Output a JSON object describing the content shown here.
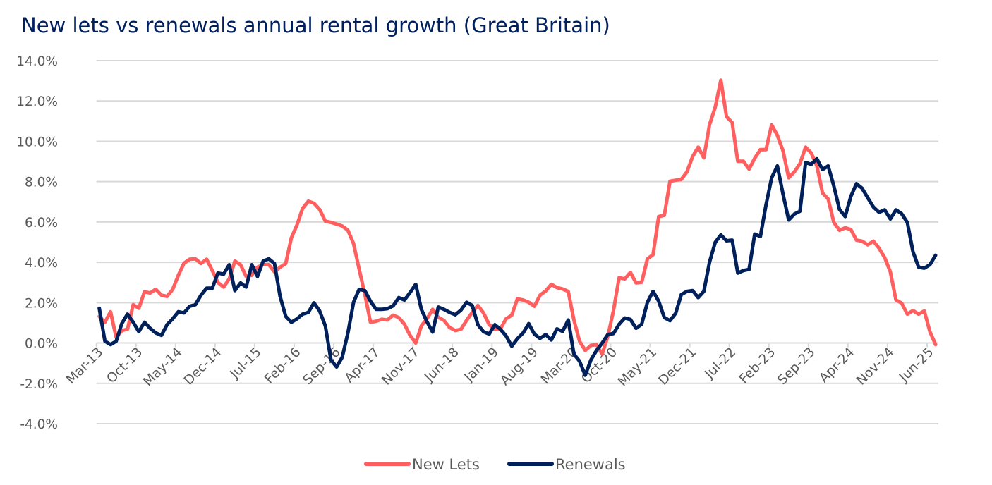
{
  "chart_data": {
    "type": "line",
    "title": "New lets vs renewals annual rental growth (Great Britain)",
    "xlabel": "",
    "ylabel": "",
    "ylim": [
      -4,
      14
    ],
    "y_ticks": [
      "14.0%",
      "12.0%",
      "10.0%",
      "8.0%",
      "6.0%",
      "4.0%",
      "2.0%",
      "0.0%",
      "-2.0%",
      "-4.0%"
    ],
    "y_tick_values": [
      14,
      12,
      10,
      8,
      6,
      4,
      2,
      0,
      -2,
      -4
    ],
    "grid": true,
    "legend": "bottom",
    "x_tick_every": 7,
    "x": [
      "Mar-13",
      "Apr-13",
      "May-13",
      "Jun-13",
      "Jul-13",
      "Aug-13",
      "Sep-13",
      "Oct-13",
      "Nov-13",
      "Dec-13",
      "Jan-14",
      "Feb-14",
      "Mar-14",
      "Apr-14",
      "May-14",
      "Jun-14",
      "Jul-14",
      "Aug-14",
      "Sep-14",
      "Oct-14",
      "Nov-14",
      "Dec-14",
      "Jan-15",
      "Feb-15",
      "Mar-15",
      "Apr-15",
      "May-15",
      "Jun-15",
      "Jul-15",
      "Aug-15",
      "Sep-15",
      "Oct-15",
      "Nov-15",
      "Dec-15",
      "Jan-16",
      "Feb-16",
      "Mar-16",
      "Apr-16",
      "May-16",
      "Jun-16",
      "Jul-16",
      "Aug-16",
      "Sep-16",
      "Oct-16",
      "Nov-16",
      "Dec-16",
      "Jan-17",
      "Feb-17",
      "Mar-17",
      "Apr-17",
      "May-17",
      "Jun-17",
      "Jul-17",
      "Aug-17",
      "Sep-17",
      "Oct-17",
      "Nov-17",
      "Dec-17",
      "Jan-18",
      "Feb-18",
      "Mar-18",
      "Apr-18",
      "May-18",
      "Jun-18",
      "Jul-18",
      "Aug-18",
      "Sep-18",
      "Oct-18",
      "Nov-18",
      "Dec-18",
      "Jan-19",
      "Feb-19",
      "Mar-19",
      "Apr-19",
      "May-19",
      "Jun-19",
      "Jul-19",
      "Aug-19",
      "Sep-19",
      "Oct-19",
      "Nov-19",
      "Dec-19",
      "Jan-20",
      "Feb-20",
      "Mar-20",
      "Apr-20",
      "May-20",
      "Jun-20",
      "Jul-20",
      "Aug-20",
      "Sep-20",
      "Oct-20",
      "Nov-20",
      "Dec-20",
      "Jan-21",
      "Feb-21",
      "Mar-21",
      "Apr-21",
      "May-21",
      "Jun-21",
      "Jul-21",
      "Aug-21",
      "Sep-21",
      "Oct-21",
      "Nov-21",
      "Dec-21",
      "Jan-22",
      "Feb-22",
      "Mar-22",
      "Apr-22",
      "May-22",
      "Jun-22",
      "Jul-22",
      "Aug-22",
      "Sep-22",
      "Oct-22",
      "Nov-22",
      "Dec-22",
      "Jan-23",
      "Feb-23",
      "Mar-23",
      "Apr-23",
      "May-23",
      "Jun-23",
      "Jul-23",
      "Aug-23",
      "Sep-23",
      "Oct-23",
      "Nov-23",
      "Dec-23",
      "Jan-24",
      "Feb-24",
      "Mar-24",
      "Apr-24",
      "May-24",
      "Jun-24",
      "Jul-24",
      "Aug-24",
      "Sep-24",
      "Oct-24",
      "Nov-24",
      "Dec-24",
      "Jan-25",
      "Feb-25",
      "Mar-25",
      "Apr-25",
      "May-25",
      "Jun-25",
      "Jul-25"
    ],
    "series": [
      {
        "name": "New Lets",
        "color": "#FF5F5F",
        "values": [
          1.32,
          1.03,
          1.55,
          0.27,
          0.62,
          0.68,
          1.9,
          1.72,
          2.54,
          2.48,
          2.66,
          2.37,
          2.31,
          2.66,
          3.36,
          3.96,
          4.15,
          4.17,
          3.94,
          4.15,
          3.59,
          3.0,
          2.77,
          3.18,
          4.06,
          3.88,
          3.3,
          3.36,
          3.76,
          3.88,
          3.88,
          3.53,
          3.76,
          3.94,
          5.22,
          5.86,
          6.68,
          7.03,
          6.93,
          6.62,
          6.04,
          5.98,
          5.9,
          5.8,
          5.59,
          4.93,
          3.65,
          2.42,
          1.03,
          1.08,
          1.18,
          1.14,
          1.38,
          1.26,
          0.93,
          0.38,
          0.0,
          0.85,
          1.2,
          1.67,
          1.28,
          1.12,
          0.77,
          0.62,
          0.68,
          1.12,
          1.52,
          1.86,
          1.49,
          0.91,
          0.68,
          0.7,
          1.2,
          1.38,
          2.19,
          2.13,
          2.02,
          1.82,
          2.37,
          2.58,
          2.91,
          2.75,
          2.68,
          2.56,
          1.14,
          0.09,
          -0.37,
          -0.12,
          -0.08,
          -0.55,
          0.33,
          1.61,
          3.24,
          3.18,
          3.5,
          2.98,
          3.01,
          4.17,
          4.38,
          6.27,
          6.33,
          8.02,
          8.07,
          8.11,
          8.48,
          9.24,
          9.71,
          9.18,
          10.82,
          11.69,
          13.03,
          11.22,
          10.93,
          9.01,
          9.01,
          8.62,
          9.16,
          9.59,
          9.59,
          10.82,
          10.29,
          9.53,
          8.19,
          8.48,
          8.89,
          9.71,
          9.42,
          8.78,
          7.44,
          7.14,
          5.98,
          5.59,
          5.71,
          5.63,
          5.1,
          5.05,
          4.87,
          5.05,
          4.7,
          4.23,
          3.53,
          2.13,
          1.98,
          1.43,
          1.61,
          1.43,
          1.59,
          0.56,
          -0.08
        ]
      },
      {
        "name": "Renewals",
        "color": "#00205B",
        "values": [
          1.72,
          0.09,
          -0.08,
          0.09,
          0.97,
          1.43,
          1.03,
          0.56,
          1.03,
          0.73,
          0.5,
          0.38,
          0.91,
          1.2,
          1.55,
          1.49,
          1.82,
          1.9,
          2.37,
          2.72,
          2.72,
          3.47,
          3.41,
          3.88,
          2.6,
          2.98,
          2.77,
          3.88,
          3.3,
          4.06,
          4.17,
          3.94,
          2.31,
          1.32,
          1.03,
          1.2,
          1.43,
          1.52,
          1.99,
          1.59,
          0.85,
          -0.84,
          -1.19,
          -0.7,
          0.5,
          2.02,
          2.66,
          2.6,
          2.07,
          1.67,
          1.67,
          1.7,
          1.84,
          2.25,
          2.13,
          2.5,
          2.91,
          1.67,
          1.05,
          0.54,
          1.78,
          1.67,
          1.52,
          1.4,
          1.63,
          2.02,
          1.86,
          0.91,
          0.56,
          0.44,
          0.91,
          0.68,
          0.35,
          -0.16,
          0.21,
          0.5,
          0.96,
          0.44,
          0.23,
          0.42,
          0.15,
          0.7,
          0.58,
          1.14,
          -0.55,
          -0.9,
          -1.6,
          -0.84,
          -0.37,
          0.0,
          0.42,
          0.47,
          0.93,
          1.24,
          1.17,
          0.73,
          0.93,
          2.02,
          2.56,
          2.07,
          1.26,
          1.11,
          1.47,
          2.4,
          2.56,
          2.6,
          2.25,
          2.56,
          4.0,
          4.99,
          5.36,
          5.07,
          5.1,
          3.47,
          3.59,
          3.65,
          5.4,
          5.28,
          6.85,
          8.19,
          8.78,
          7.38,
          6.1,
          6.39,
          6.53,
          8.95,
          8.86,
          9.13,
          8.6,
          8.78,
          7.79,
          6.62,
          6.27,
          7.26,
          7.9,
          7.67,
          7.2,
          6.74,
          6.48,
          6.6,
          6.15,
          6.6,
          6.41,
          5.98,
          4.52,
          3.76,
          3.71,
          3.88,
          4.35
        ]
      }
    ]
  },
  "colors": {
    "title": "#002060",
    "axis_text": "#595959",
    "grid": "#D9D9D9"
  }
}
